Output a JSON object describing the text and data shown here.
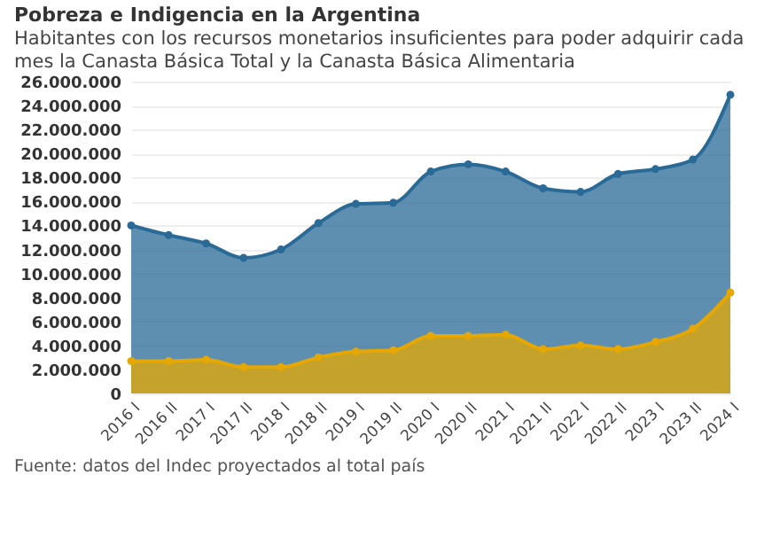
{
  "chart_data": {
    "type": "area",
    "title": "Pobreza e Indigencia en la Argentina",
    "subtitle": "Habitantes con los recursos monetarios insuficientes para poder adquirir cada mes la Canasta Básica Total y la Canasta Básica Alimentaria",
    "categories": [
      "2016 I",
      "2016 II",
      "2017 I",
      "2017 II",
      "2018 I",
      "2018 II",
      "2019 I",
      "2019 II",
      "2020 I",
      "2020 II",
      "2021 I",
      "2021 II",
      "2022 I",
      "2022 II",
      "2023 I",
      "2023 II",
      "2024 I"
    ],
    "series": [
      {
        "color": "#2a6a96",
        "values": [
          14000000,
          13200000,
          12500000,
          11300000,
          12000000,
          14200000,
          15800000,
          15900000,
          18500000,
          19100000,
          18500000,
          17100000,
          16800000,
          18300000,
          18700000,
          19500000,
          24900000
        ]
      },
      {
        "color": "#e6a800",
        "values": [
          2700000,
          2700000,
          2800000,
          2200000,
          2200000,
          3000000,
          3500000,
          3600000,
          4800000,
          4800000,
          4900000,
          3700000,
          4000000,
          3700000,
          4300000,
          5400000,
          8400000
        ]
      }
    ],
    "ylim": [
      0,
      26000000
    ],
    "yticks": [
      0,
      {
        "value": 2000000,
        "label": "2.000.000"
      },
      {
        "value": 4000000,
        "label": "4.000.000"
      },
      {
        "value": 6000000,
        "label": "6.000.000"
      },
      {
        "value": 8000000,
        "label": "8.000.000"
      },
      {
        "value": 10000000,
        "label": "10.000.000"
      },
      {
        "value": 12000000,
        "label": "12.000.000"
      },
      {
        "value": 14000000,
        "label": "14.000.000"
      },
      {
        "value": 16000000,
        "label": "16.000.000"
      },
      {
        "value": 18000000,
        "label": "18.000.000"
      },
      {
        "value": 20000000,
        "label": "20.000.000"
      },
      {
        "value": 22000000,
        "label": "22.000.000"
      },
      {
        "value": 24000000,
        "label": "24.000.000"
      },
      {
        "value": 26000000,
        "label": "26.000.000"
      }
    ],
    "grid": "y",
    "marker": "circle",
    "annotations": [
      "Fuente: datos del Indec proyectados al total país"
    ]
  }
}
